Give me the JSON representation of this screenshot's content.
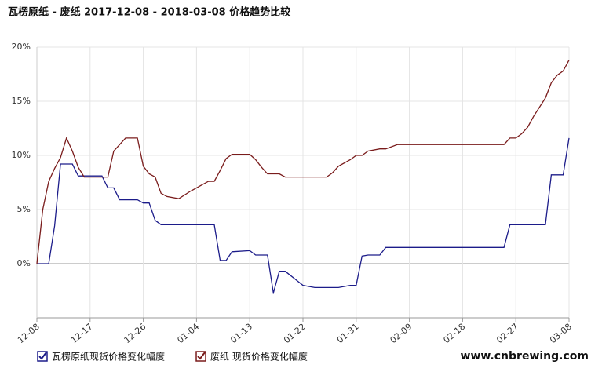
{
  "chart_data": {
    "type": "line",
    "title": "瓦楞原纸 - 废纸 2017-12-08 - 2018-03-08 价格趋势比较",
    "x": [
      "12-08",
      "12-09",
      "12-10",
      "12-11",
      "12-12",
      "12-13",
      "12-14",
      "12-15",
      "12-16",
      "12-19",
      "12-20",
      "12-21",
      "12-22",
      "12-23",
      "12-25",
      "12-26",
      "12-27",
      "12-28",
      "12-29",
      "12-30",
      "01-01",
      "01-03",
      "01-04",
      "01-06",
      "01-07",
      "01-08",
      "01-09",
      "01-10",
      "01-13",
      "01-14",
      "01-15",
      "01-16",
      "01-17",
      "01-18",
      "01-19",
      "01-22",
      "01-24",
      "01-26",
      "01-27",
      "01-28",
      "01-30",
      "01-31",
      "02-01",
      "02-02",
      "02-04",
      "02-05",
      "02-07",
      "02-25",
      "02-26",
      "02-27",
      "02-28",
      "03-01",
      "03-02",
      "03-04",
      "03-05",
      "03-06",
      "03-07",
      "03-08"
    ],
    "series": [
      {
        "name": "瓦楞原纸现货价格变化幅度",
        "color": "#1c1c8a",
        "values": [
          0,
          0,
          0,
          3.5,
          9.2,
          9.2,
          9.2,
          8.1,
          8.1,
          8.1,
          7.0,
          7.0,
          5.9,
          5.9,
          5.9,
          5.6,
          5.6,
          4.0,
          3.6,
          3.6,
          3.6,
          3.6,
          3.6,
          3.6,
          3.6,
          0.3,
          0.3,
          1.1,
          1.2,
          0.8,
          0.8,
          0.8,
          -2.7,
          -0.7,
          -0.7,
          -2.0,
          -2.2,
          -2.2,
          -2.2,
          -2.2,
          -2.0,
          -2.0,
          0.7,
          0.8,
          0.8,
          1.5,
          1.5,
          1.5,
          3.6,
          3.6,
          3.6,
          3.6,
          3.6,
          3.6,
          8.2,
          8.2,
          8.2,
          11.6
        ]
      },
      {
        "name": "废纸 现货价格变化幅度",
        "color": "#7a1c1c",
        "values": [
          0,
          5.0,
          7.6,
          8.8,
          9.8,
          11.6,
          10.4,
          8.9,
          8.0,
          8.0,
          8.0,
          10.4,
          11.0,
          11.6,
          11.6,
          9.0,
          8.3,
          8.0,
          6.5,
          6.2,
          6.0,
          6.7,
          7.0,
          7.6,
          7.6,
          8.6,
          9.7,
          10.1,
          10.1,
          9.6,
          8.9,
          8.3,
          8.3,
          8.3,
          8.0,
          8.0,
          8.0,
          8.0,
          8.4,
          9.0,
          9.6,
          10.0,
          10.0,
          10.4,
          10.6,
          10.6,
          11.0,
          11.0,
          11.6,
          11.6,
          12.0,
          12.6,
          13.6,
          15.3,
          16.7,
          17.4,
          17.8,
          18.8
        ]
      }
    ],
    "xticks": [
      "12-08",
      "12-17",
      "12-26",
      "01-04",
      "01-13",
      "01-22",
      "01-31",
      "02-09",
      "02-18",
      "02-27",
      "03-08"
    ],
    "ylim": [
      -5,
      20
    ],
    "yticks": [
      {
        "value": 0,
        "label": "0%"
      },
      {
        "value": 5,
        "label": "5%"
      },
      {
        "value": 10,
        "label": "10%"
      },
      {
        "value": 15,
        "label": "15%"
      },
      {
        "value": 20,
        "label": "20%"
      }
    ],
    "grid": true,
    "watermark": "www.cnbrewing.com"
  }
}
